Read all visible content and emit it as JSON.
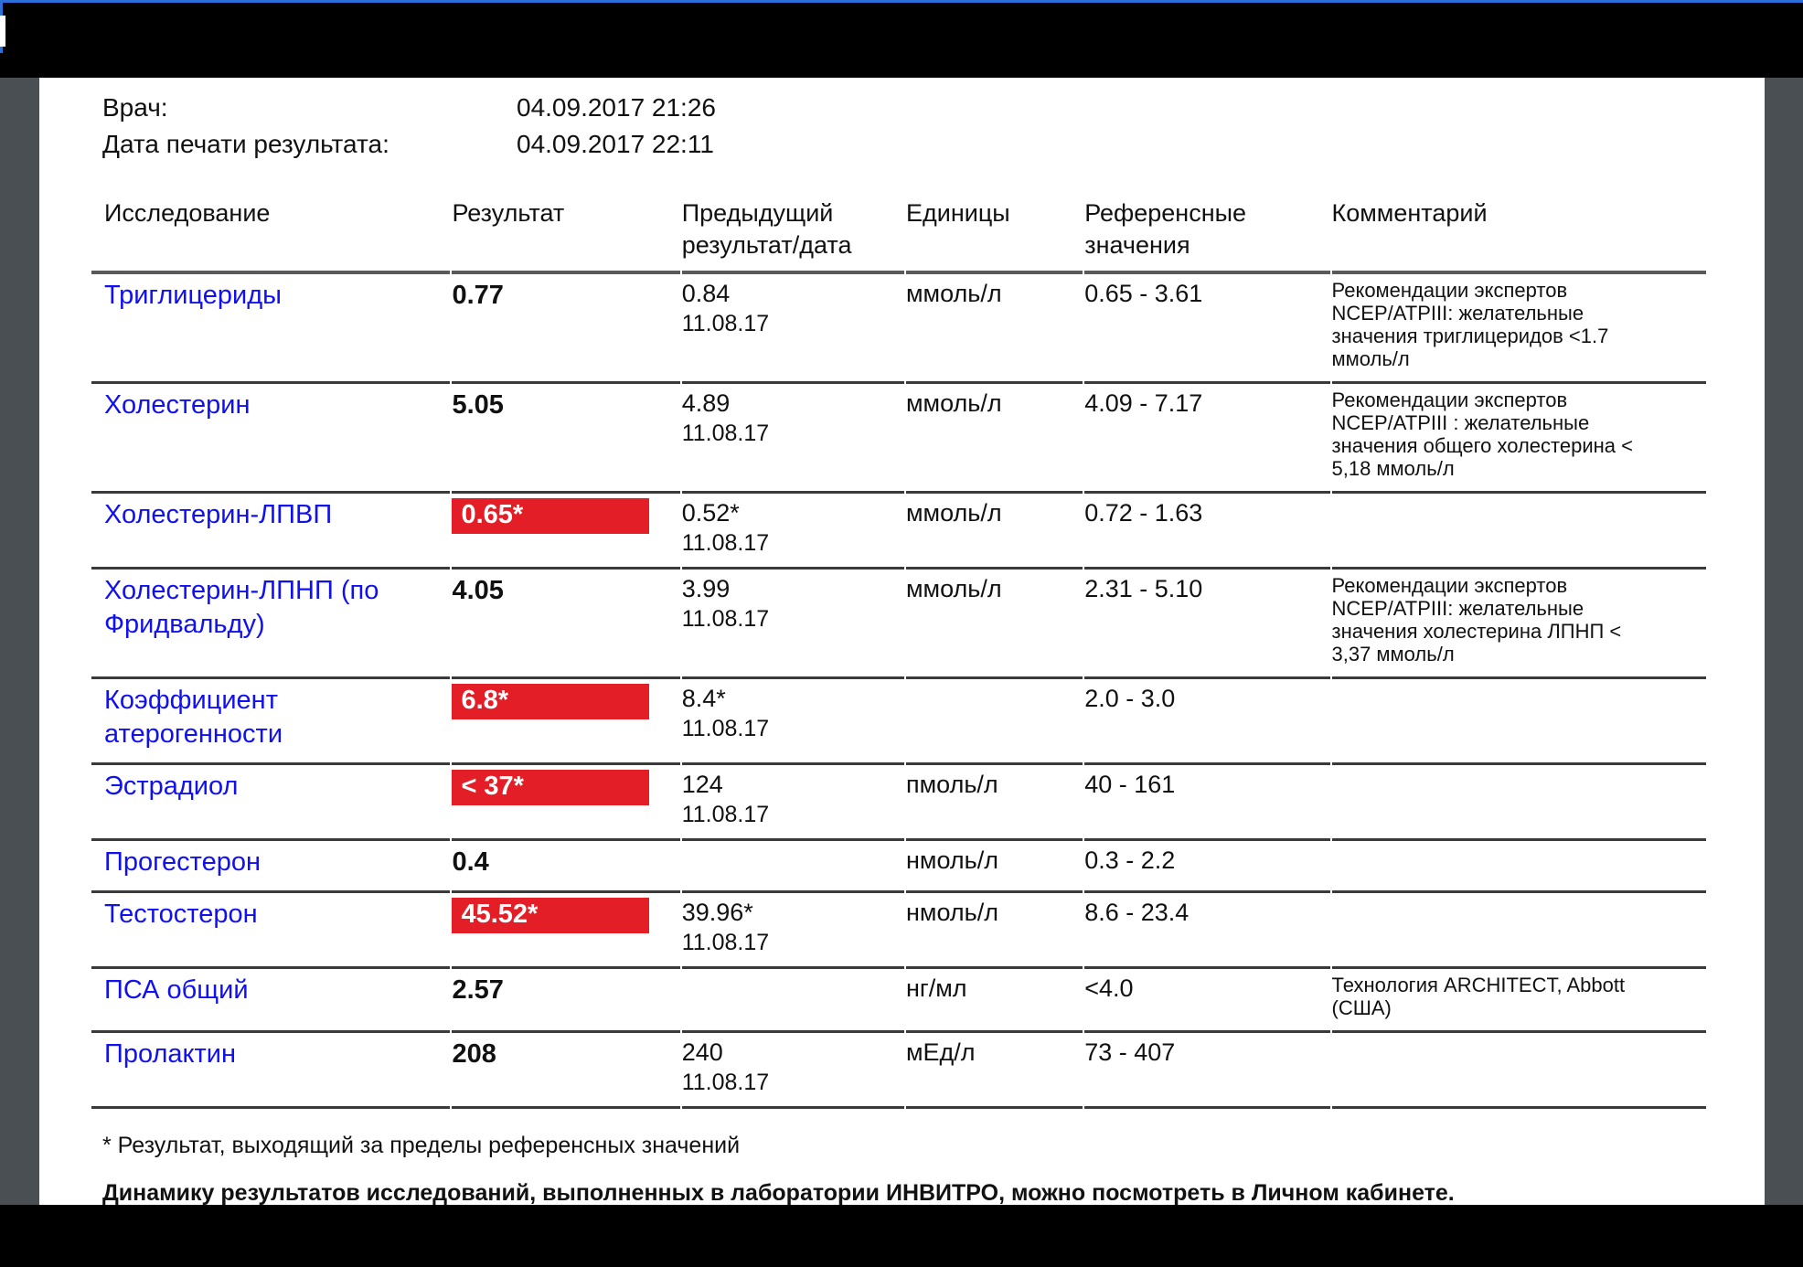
{
  "colors": {
    "flag_red": "#e31e26",
    "test_link_blue": "#1010f0",
    "frame_black": "#000000",
    "side_gray": "#4a4f54",
    "top_line_blue": "#2c6fd8"
  },
  "meta": {
    "doctor_label": "Врач:",
    "doctor_datetime": "04.09.2017 21:26",
    "print_label": "Дата печати результата:",
    "print_datetime": "04.09.2017 22:11"
  },
  "table": {
    "headers": [
      "Исследование",
      "Результат",
      "Предыдущий\nрезультат/дата",
      "Единицы",
      "Референсные\nзначения",
      "Комментарий"
    ],
    "rows": [
      {
        "name": "Триглицериды",
        "result": "0.77",
        "flagged": false,
        "prev": "0.84",
        "prev_date": "11.08.17",
        "units": "ммоль/л",
        "ref": "0.65 - 3.61",
        "comment": "Рекомендации экспертов\nNCEP/ATPIII: желательные\nзначения триглицеридов <1.7\nммоль/л"
      },
      {
        "name": "Холестерин",
        "result": "5.05",
        "flagged": false,
        "prev": "4.89",
        "prev_date": "11.08.17",
        "units": "ммоль/л",
        "ref": "4.09 - 7.17",
        "comment": "Рекомендации экспертов\nNCEP/ATPIII : желательные\nзначения общего холестерина <\n5,18 ммоль/л"
      },
      {
        "name": "Холестерин-ЛПВП",
        "result": "0.65*",
        "flagged": true,
        "prev": "0.52*",
        "prev_date": "11.08.17",
        "units": "ммоль/л",
        "ref": "0.72 - 1.63",
        "comment": ""
      },
      {
        "name": "Холестерин-ЛПНП (по\nФридвальду)",
        "result": "4.05",
        "flagged": false,
        "prev": "3.99",
        "prev_date": "11.08.17",
        "units": "ммоль/л",
        "ref": "2.31 - 5.10",
        "comment": "Рекомендации экспертов\nNCEP/ATPIII: желательные\nзначения холестерина ЛПНП <\n3,37 ммоль/л"
      },
      {
        "name": "Коэффициент\nатерогенности",
        "result": "6.8*",
        "flagged": true,
        "prev": "8.4*",
        "prev_date": "11.08.17",
        "units": "",
        "ref": "2.0 - 3.0",
        "comment": ""
      },
      {
        "name": "Эстрадиол",
        "result": "< 37*",
        "flagged": true,
        "prev": "124",
        "prev_date": "11.08.17",
        "units": "пмоль/л",
        "ref": "40 - 161",
        "comment": ""
      },
      {
        "name": "Прогестерон",
        "result": "0.4",
        "flagged": false,
        "prev": "",
        "prev_date": "",
        "units": "нмоль/л",
        "ref": "0.3 - 2.2",
        "comment": ""
      },
      {
        "name": "Тестостерон",
        "result": "45.52*",
        "flagged": true,
        "prev": "39.96*",
        "prev_date": "11.08.17",
        "units": "нмоль/л",
        "ref": "8.6 - 23.4",
        "comment": ""
      },
      {
        "name": "ПСА общий",
        "result": "2.57",
        "flagged": false,
        "prev": "",
        "prev_date": "",
        "units": "нг/мл",
        "ref": "<4.0",
        "comment": "Технология ARCHITECT, Abbott\n(США)"
      },
      {
        "name": "Пролактин",
        "result": "208",
        "flagged": false,
        "prev": "240",
        "prev_date": "11.08.17",
        "units": "мЕд/л",
        "ref": "73 - 407",
        "comment": ""
      }
    ]
  },
  "footer": {
    "footnote": "* Результат, выходящий за пределы референсных значений",
    "dynamics_note": "Динамику результатов исследований, выполненных в лаборатории ИНВИТРО, можно посмотреть в Личном кабинете."
  }
}
